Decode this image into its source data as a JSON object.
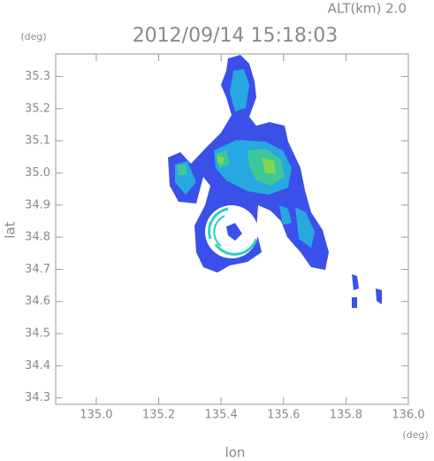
{
  "chart_data": {
    "type": "map",
    "title": "2012/09/14 15:18:03",
    "subtitle": "ALT(km) 2.0",
    "y_unit": "(deg)",
    "x_unit": "(deg)",
    "ylabel": "lat",
    "xlabel": "lon",
    "xlim": [
      134.87,
      136.0
    ],
    "ylim": [
      34.28,
      35.37
    ],
    "xticks": [
      {
        "value": 135.0,
        "label": "135.0"
      },
      135.2,
      135.4,
      135.6,
      135.8,
      {
        "value": 136.0,
        "label": "136.0"
      }
    ],
    "yticks": [
      34.3,
      34.4,
      34.5,
      34.6,
      34.7,
      34.8,
      34.9,
      {
        "value": 35.0,
        "label": "35.0"
      },
      35.1,
      35.2,
      35.3
    ]
  }
}
